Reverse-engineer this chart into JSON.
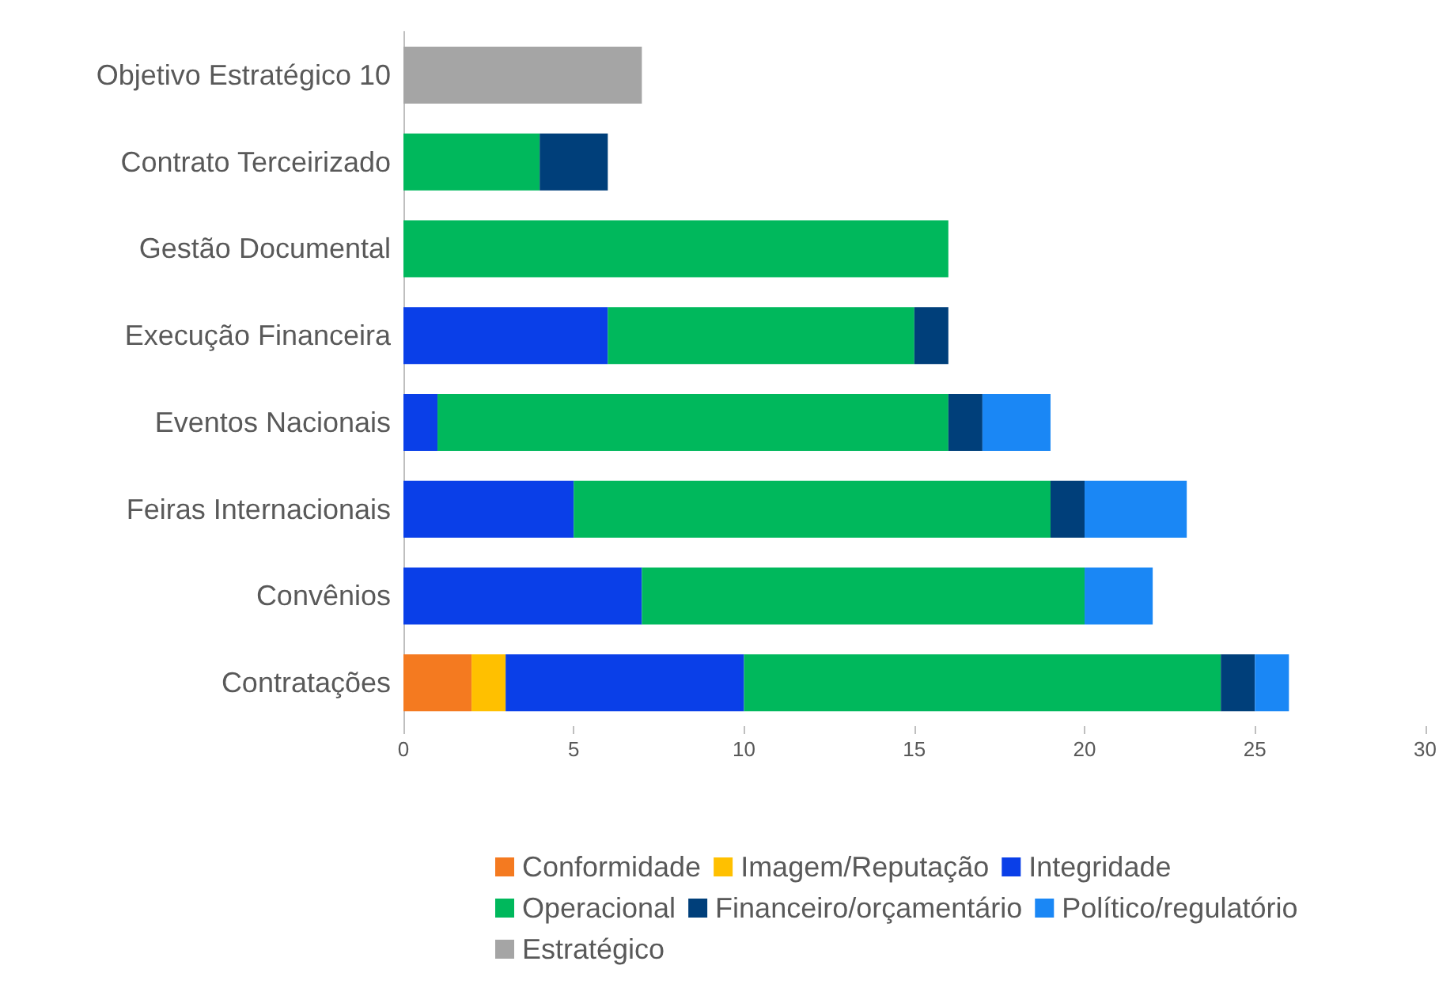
{
  "chart_data": {
    "type": "bar",
    "orientation": "horizontal",
    "stacked": true,
    "categories": [
      "Objetivo Estratégico 10",
      "Contrato Terceirizado",
      "Gestão Documental",
      "Execução Financeira",
      "Eventos Nacionais",
      "Feiras Internacionais",
      "Convênios",
      "Contratações"
    ],
    "series": [
      {
        "name": "Conformidade",
        "color": "#f47a20",
        "values": [
          null,
          null,
          null,
          null,
          null,
          null,
          null,
          2
        ]
      },
      {
        "name": "Imagem/Reputação",
        "color": "#ffc000",
        "values": [
          null,
          null,
          null,
          null,
          null,
          null,
          null,
          1
        ]
      },
      {
        "name": "Integridade",
        "color": "#0a3fe8",
        "values": [
          null,
          null,
          null,
          6,
          1,
          5,
          7,
          7
        ]
      },
      {
        "name": "Operacional",
        "color": "#00b85c",
        "values": [
          null,
          4,
          16,
          9,
          15,
          14,
          13,
          14
        ]
      },
      {
        "name": "Financeiro/orçamentário",
        "color": "#003f7a",
        "values": [
          null,
          2,
          null,
          1,
          1,
          1,
          null,
          1
        ]
      },
      {
        "name": "Político/regulatório",
        "color": "#1a87f5",
        "values": [
          null,
          null,
          null,
          null,
          2,
          3,
          2,
          1
        ]
      },
      {
        "name": "Estratégico",
        "color": "#a5a5a5",
        "values": [
          7,
          null,
          null,
          null,
          null,
          null,
          null,
          null
        ]
      }
    ],
    "xlim": [
      0,
      30
    ],
    "xticks": [
      0,
      5,
      10,
      15,
      20,
      25,
      30
    ],
    "grid": false,
    "legend": "bottom"
  }
}
